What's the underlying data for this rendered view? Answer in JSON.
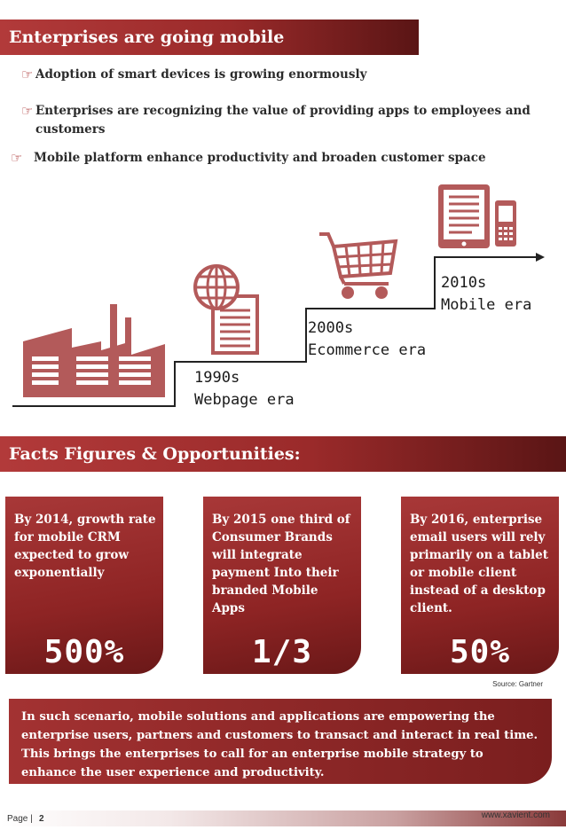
{
  "section1": {
    "title": "Enterprises are going mobile",
    "bullets": [
      "Adoption of smart devices is growing enormously",
      "Enterprises are recognizing the value of providing apps to employees and customers",
      "Mobile platform enhance productivity and broaden customer space"
    ]
  },
  "timeline": {
    "eras": [
      {
        "decade": "1990s",
        "label": "Webpage era"
      },
      {
        "decade": "2000s",
        "label": "Ecommerce era"
      },
      {
        "decade": "2010s",
        "label": "Mobile era"
      }
    ],
    "icons": [
      "factory-icon",
      "globe-document-icon",
      "shopping-cart-icon",
      "tablet-phone-icon"
    ]
  },
  "section2": {
    "title": "Facts Figures & Opportunities:",
    "cards": [
      {
        "text": "By 2014, growth rate for mobile CRM expected to grow exponentially",
        "value": "500%"
      },
      {
        "text": "By 2015 one third of Consumer Brands will integrate payment Into their branded Mobile Apps",
        "value": "1/3"
      },
      {
        "text": "By 2016, enterprise email users will rely primarily on a tablet or mobile client instead of a desktop client.",
        "value": "50%"
      }
    ],
    "source": "Source: Gartner"
  },
  "summary": "In such scenario, mobile solutions and applications are empowering the enterprise users, partners and customers to transact and interact in real time. This brings the enterprises to call for an enterprise mobile strategy to enhance the user experience and productivity.",
  "footer": {
    "page_label": "Page |",
    "page_number": "2",
    "website": "www.xavient.com"
  },
  "colors": {
    "accent": "#a33232",
    "icon": "#b35a5a",
    "dark": "#1a1a1a"
  }
}
